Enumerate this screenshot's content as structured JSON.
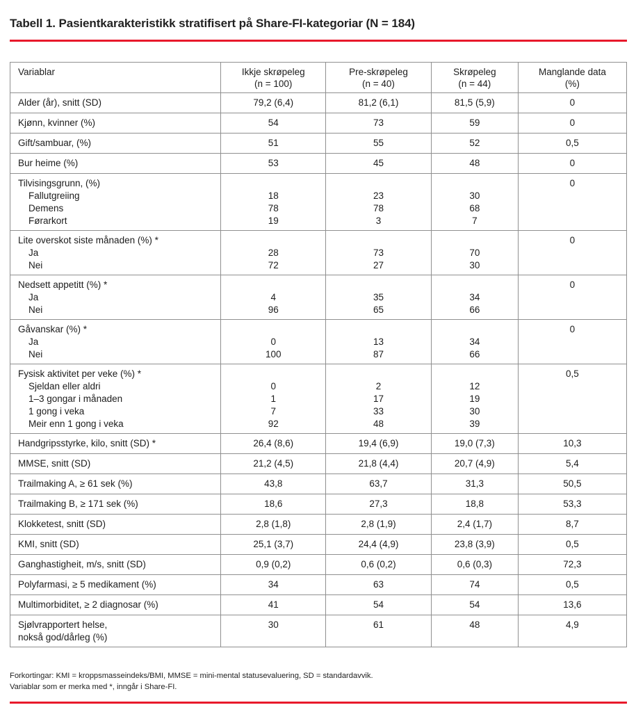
{
  "title": "Tabell 1. Pasientkarakteristikk stratifisert på Share-FI-kategoriar (N = 184)",
  "accent_color": "#e8192b",
  "table": {
    "columns": [
      {
        "label": "Variablar",
        "sub": ""
      },
      {
        "label": "Ikkje skrøpeleg",
        "sub": "(n = 100)"
      },
      {
        "label": "Pre-skrøpeleg",
        "sub": "(n = 40)"
      },
      {
        "label": "Skrøpeleg",
        "sub": "(n = 44)"
      },
      {
        "label": "Manglande data",
        "sub": "(%)"
      }
    ],
    "rows": [
      {
        "label": [
          "Alder (år), snitt (SD)"
        ],
        "indent_sub": false,
        "cols": [
          [
            "79,2 (6,4)"
          ],
          [
            "81,2 (6,1)"
          ],
          [
            "81,5 (5,9)"
          ]
        ],
        "missing": "0"
      },
      {
        "label": [
          "Kjønn, kvinner (%)"
        ],
        "indent_sub": false,
        "cols": [
          [
            "54"
          ],
          [
            "73"
          ],
          [
            "59"
          ]
        ],
        "missing": "0"
      },
      {
        "label": [
          "Gift/sambuar, (%)"
        ],
        "indent_sub": false,
        "cols": [
          [
            "51"
          ],
          [
            "55"
          ],
          [
            "52"
          ]
        ],
        "missing": "0,5"
      },
      {
        "label": [
          "Bur heime (%)"
        ],
        "indent_sub": false,
        "cols": [
          [
            "53"
          ],
          [
            "45"
          ],
          [
            "48"
          ]
        ],
        "missing": "0"
      },
      {
        "label": [
          "Tilvisingsgrunn, (%)",
          "Fallutgreiing",
          "Demens",
          "Førarkort"
        ],
        "indent_sub": true,
        "cols": [
          [
            "",
            "18",
            "78",
            "19"
          ],
          [
            "",
            "23",
            "78",
            "3"
          ],
          [
            "",
            "30",
            "68",
            "7"
          ]
        ],
        "missing": "0"
      },
      {
        "label": [
          "Lite overskot siste månaden (%) *",
          "Ja",
          "Nei"
        ],
        "indent_sub": true,
        "cols": [
          [
            "",
            "28",
            "72"
          ],
          [
            "",
            "73",
            "27"
          ],
          [
            "",
            "70",
            "30"
          ]
        ],
        "missing": "0"
      },
      {
        "label": [
          "Nedsett appetitt (%) *",
          "Ja",
          "Nei"
        ],
        "indent_sub": true,
        "cols": [
          [
            "",
            "4",
            "96"
          ],
          [
            "",
            "35",
            "65"
          ],
          [
            "",
            "34",
            "66"
          ]
        ],
        "missing": "0"
      },
      {
        "label": [
          "Gåvanskar (%) *",
          "Ja",
          "Nei"
        ],
        "indent_sub": true,
        "cols": [
          [
            "",
            "0",
            "100"
          ],
          [
            "",
            "13",
            "87"
          ],
          [
            "",
            "34",
            "66"
          ]
        ],
        "missing": "0"
      },
      {
        "label": [
          "Fysisk aktivitet per veke (%) *",
          "Sjeldan eller aldri",
          "1–3 gongar i månaden",
          "1 gong i veka",
          "Meir enn 1 gong i veka"
        ],
        "indent_sub": true,
        "cols": [
          [
            "",
            "0",
            "1",
            "7",
            "92"
          ],
          [
            "",
            "2",
            "17",
            "33",
            "48"
          ],
          [
            "",
            "12",
            "19",
            "30",
            "39"
          ]
        ],
        "missing": "0,5"
      },
      {
        "label": [
          "Handgripsstyrke, kilo, snitt (SD) *"
        ],
        "indent_sub": false,
        "cols": [
          [
            "26,4 (8,6)"
          ],
          [
            "19,4 (6,9)"
          ],
          [
            "19,0 (7,3)"
          ]
        ],
        "missing": "10,3"
      },
      {
        "label": [
          "MMSE, snitt (SD)"
        ],
        "indent_sub": false,
        "cols": [
          [
            "21,2 (4,5)"
          ],
          [
            "21,8 (4,4)"
          ],
          [
            "20,7 (4,9)"
          ]
        ],
        "missing": "5,4"
      },
      {
        "label": [
          "Trailmaking A, ≥ 61 sek (%)"
        ],
        "indent_sub": false,
        "cols": [
          [
            "43,8"
          ],
          [
            "63,7"
          ],
          [
            "31,3"
          ]
        ],
        "missing": "50,5"
      },
      {
        "label": [
          "Trailmaking B, ≥ 171 sek (%)"
        ],
        "indent_sub": false,
        "cols": [
          [
            "18,6"
          ],
          [
            "27,3"
          ],
          [
            "18,8"
          ]
        ],
        "missing": "53,3"
      },
      {
        "label": [
          "Klokketest, snitt (SD)"
        ],
        "indent_sub": false,
        "cols": [
          [
            "2,8 (1,8)"
          ],
          [
            "2,8 (1,9)"
          ],
          [
            "2,4 (1,7)"
          ]
        ],
        "missing": "8,7"
      },
      {
        "label": [
          "KMI, snitt (SD)"
        ],
        "indent_sub": false,
        "cols": [
          [
            "25,1 (3,7)"
          ],
          [
            "24,4 (4,9)"
          ],
          [
            "23,8 (3,9)"
          ]
        ],
        "missing": "0,5"
      },
      {
        "label": [
          "Ganghastigheit, m/s, snitt (SD)"
        ],
        "indent_sub": false,
        "cols": [
          [
            "0,9 (0,2)"
          ],
          [
            "0,6 (0,2)"
          ],
          [
            "0,6 (0,3)"
          ]
        ],
        "missing": "72,3"
      },
      {
        "label": [
          "Polyfarmasi, ≥ 5 medikament (%)"
        ],
        "indent_sub": false,
        "cols": [
          [
            "34"
          ],
          [
            "63"
          ],
          [
            "74"
          ]
        ],
        "missing": "0,5"
      },
      {
        "label": [
          "Multimorbiditet, ≥ 2 diagnosar (%)"
        ],
        "indent_sub": false,
        "cols": [
          [
            "41"
          ],
          [
            "54"
          ],
          [
            "54"
          ]
        ],
        "missing": "13,6"
      },
      {
        "label": [
          "Sjølvrapportert helse,",
          "nokså god/dårleg (%)"
        ],
        "indent_sub": false,
        "cols": [
          [
            "30"
          ],
          [
            "61"
          ],
          [
            "48"
          ]
        ],
        "missing": "4,9"
      }
    ]
  },
  "footnotes": [
    "Forkortingar: KMI = kroppsmasseindeks/BMI, MMSE = mini-mental statusevaluering, SD = standardavvik.",
    "Variablar som er merka med *, inngår i Share-FI."
  ]
}
